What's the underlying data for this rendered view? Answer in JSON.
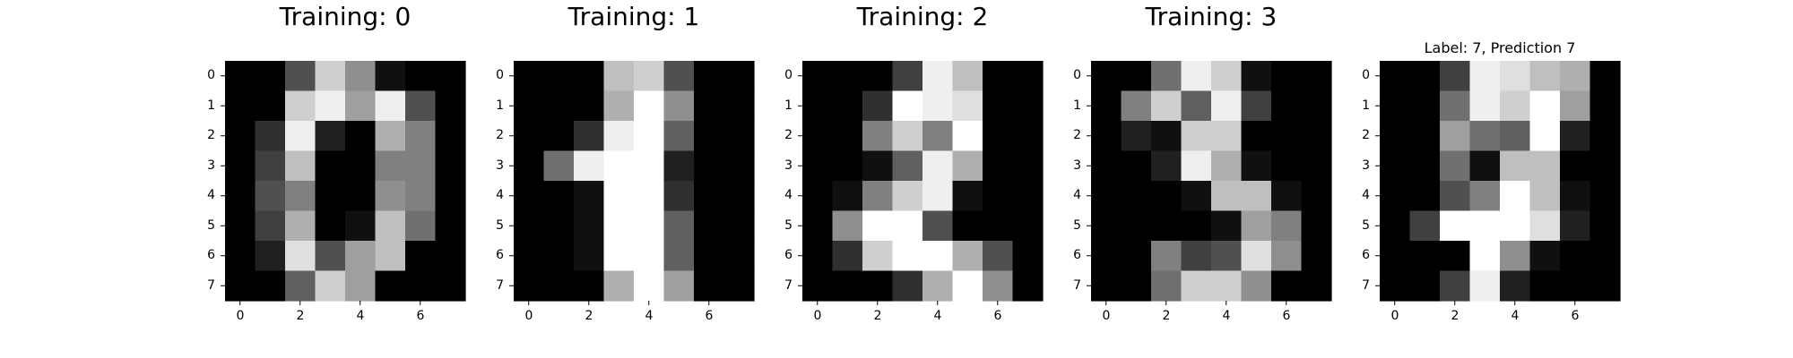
{
  "figure": {
    "panels": [
      {
        "title": "Training: 0",
        "title_size": "large",
        "xticks": [
          "0",
          "2",
          "4",
          "6"
        ],
        "yticks": [
          "0",
          "1",
          "2",
          "3",
          "4",
          "5",
          "6",
          "7"
        ],
        "intensity_scale": "0-16 grayscale (0 = black, 16 = white)"
      },
      {
        "title": "Training: 1",
        "title_size": "large",
        "xticks": [
          "0",
          "2",
          "4",
          "6"
        ],
        "yticks": [
          "0",
          "1",
          "2",
          "3",
          "4",
          "5",
          "6",
          "7"
        ]
      },
      {
        "title": "Training: 2",
        "title_size": "large",
        "xticks": [
          "0",
          "2",
          "4",
          "6"
        ],
        "yticks": [
          "0",
          "1",
          "2",
          "3",
          "4",
          "5",
          "6",
          "7"
        ]
      },
      {
        "title": "Training: 3",
        "title_size": "large",
        "xticks": [
          "0",
          "2",
          "4",
          "6"
        ],
        "yticks": [
          "0",
          "1",
          "2",
          "3",
          "4",
          "5",
          "6",
          "7"
        ]
      },
      {
        "title": "Label: 7, Prediction 7",
        "title_size": "small",
        "xticks": [
          "0",
          "2",
          "4",
          "6"
        ],
        "yticks": [
          "0",
          "1",
          "2",
          "3",
          "4",
          "5",
          "6",
          "7"
        ]
      }
    ]
  },
  "chart_data": [
    {
      "type": "heatmap",
      "colormap": "gray",
      "title": "Training: 0",
      "xlabel": "",
      "ylabel": "",
      "x": [
        0,
        1,
        2,
        3,
        4,
        5,
        6,
        7
      ],
      "y": [
        0,
        1,
        2,
        3,
        4,
        5,
        6,
        7
      ],
      "zlim": [
        0,
        16
      ],
      "grid": false,
      "z": [
        [
          0,
          0,
          5,
          13,
          9,
          1,
          0,
          0
        ],
        [
          0,
          0,
          13,
          15,
          10,
          15,
          5,
          0
        ],
        [
          0,
          3,
          15,
          2,
          0,
          11,
          8,
          0
        ],
        [
          0,
          4,
          12,
          0,
          0,
          8,
          8,
          0
        ],
        [
          0,
          5,
          8,
          0,
          0,
          9,
          8,
          0
        ],
        [
          0,
          4,
          11,
          0,
          1,
          12,
          7,
          0
        ],
        [
          0,
          2,
          14,
          5,
          10,
          12,
          0,
          0
        ],
        [
          0,
          0,
          6,
          13,
          10,
          0,
          0,
          0
        ]
      ]
    },
    {
      "type": "heatmap",
      "colormap": "gray",
      "title": "Training: 1",
      "xlabel": "",
      "ylabel": "",
      "x": [
        0,
        1,
        2,
        3,
        4,
        5,
        6,
        7
      ],
      "y": [
        0,
        1,
        2,
        3,
        4,
        5,
        6,
        7
      ],
      "zlim": [
        0,
        16
      ],
      "grid": false,
      "z": [
        [
          0,
          0,
          0,
          12,
          13,
          5,
          0,
          0
        ],
        [
          0,
          0,
          0,
          11,
          16,
          9,
          0,
          0
        ],
        [
          0,
          0,
          3,
          15,
          16,
          6,
          0,
          0
        ],
        [
          0,
          7,
          15,
          16,
          16,
          2,
          0,
          0
        ],
        [
          0,
          0,
          1,
          16,
          16,
          3,
          0,
          0
        ],
        [
          0,
          0,
          1,
          16,
          16,
          6,
          0,
          0
        ],
        [
          0,
          0,
          1,
          16,
          16,
          6,
          0,
          0
        ],
        [
          0,
          0,
          0,
          11,
          16,
          10,
          0,
          0
        ]
      ]
    },
    {
      "type": "heatmap",
      "colormap": "gray",
      "title": "Training: 2",
      "xlabel": "",
      "ylabel": "",
      "x": [
        0,
        1,
        2,
        3,
        4,
        5,
        6,
        7
      ],
      "y": [
        0,
        1,
        2,
        3,
        4,
        5,
        6,
        7
      ],
      "zlim": [
        0,
        16
      ],
      "grid": false,
      "z": [
        [
          0,
          0,
          0,
          4,
          15,
          12,
          0,
          0
        ],
        [
          0,
          0,
          3,
          16,
          15,
          14,
          0,
          0
        ],
        [
          0,
          0,
          8,
          13,
          8,
          16,
          0,
          0
        ],
        [
          0,
          0,
          1,
          6,
          15,
          11,
          0,
          0
        ],
        [
          0,
          1,
          8,
          13,
          15,
          1,
          0,
          0
        ],
        [
          0,
          9,
          16,
          16,
          5,
          0,
          0,
          0
        ],
        [
          0,
          3,
          13,
          16,
          16,
          11,
          5,
          0
        ],
        [
          0,
          0,
          0,
          3,
          11,
          16,
          9,
          0
        ]
      ]
    },
    {
      "type": "heatmap",
      "colormap": "gray",
      "title": "Training: 3",
      "xlabel": "",
      "ylabel": "",
      "x": [
        0,
        1,
        2,
        3,
        4,
        5,
        6,
        7
      ],
      "y": [
        0,
        1,
        2,
        3,
        4,
        5,
        6,
        7
      ],
      "zlim": [
        0,
        16
      ],
      "grid": false,
      "z": [
        [
          0,
          0,
          7,
          15,
          13,
          1,
          0,
          0
        ],
        [
          0,
          8,
          13,
          6,
          15,
          4,
          0,
          0
        ],
        [
          0,
          2,
          1,
          13,
          13,
          0,
          0,
          0
        ],
        [
          0,
          0,
          2,
          15,
          11,
          1,
          0,
          0
        ],
        [
          0,
          0,
          0,
          1,
          12,
          12,
          1,
          0
        ],
        [
          0,
          0,
          0,
          0,
          1,
          10,
          8,
          0
        ],
        [
          0,
          0,
          8,
          4,
          5,
          14,
          9,
          0
        ],
        [
          0,
          0,
          7,
          13,
          13,
          9,
          0,
          0
        ]
      ]
    },
    {
      "type": "heatmap",
      "colormap": "gray",
      "title": "Label: 7, Prediction 7",
      "xlabel": "",
      "ylabel": "",
      "x": [
        0,
        1,
        2,
        3,
        4,
        5,
        6,
        7
      ],
      "y": [
        0,
        1,
        2,
        3,
        4,
        5,
        6,
        7
      ],
      "zlim": [
        0,
        16
      ],
      "grid": false,
      "z": [
        [
          0,
          0,
          4,
          15,
          14,
          12,
          11,
          0
        ],
        [
          0,
          0,
          7,
          15,
          13,
          16,
          10,
          0
        ],
        [
          0,
          0,
          10,
          7,
          6,
          16,
          2,
          0
        ],
        [
          0,
          0,
          7,
          1,
          12,
          12,
          0,
          0
        ],
        [
          0,
          0,
          5,
          8,
          16,
          12,
          1,
          0
        ],
        [
          0,
          4,
          16,
          16,
          16,
          14,
          2,
          0
        ],
        [
          0,
          0,
          0,
          16,
          9,
          1,
          0,
          0
        ],
        [
          0,
          0,
          4,
          15,
          2,
          0,
          0,
          0
        ]
      ]
    }
  ]
}
